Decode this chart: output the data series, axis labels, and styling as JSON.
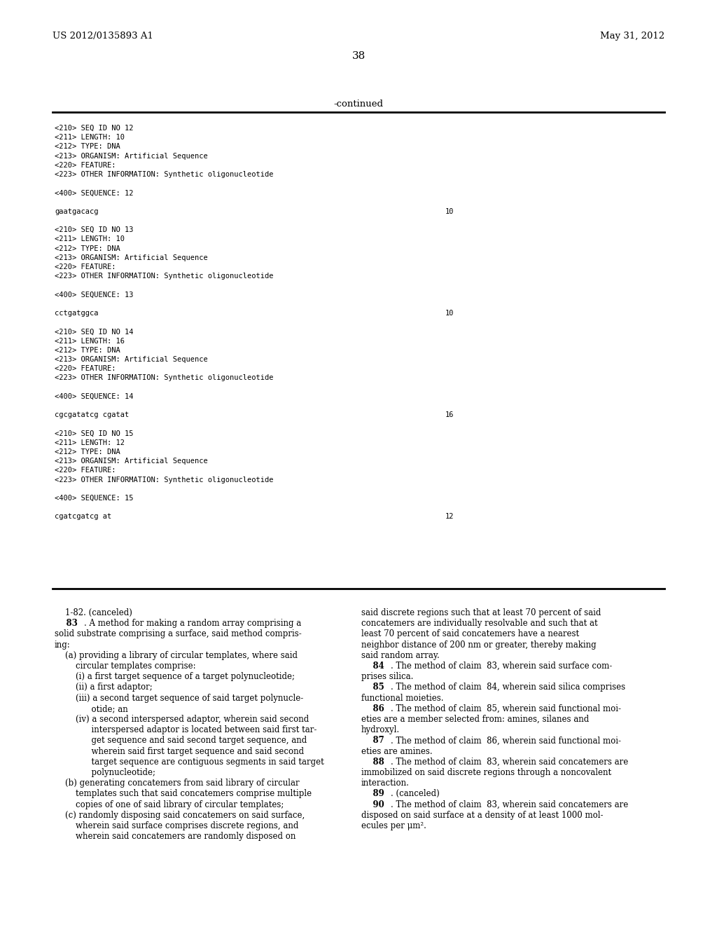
{
  "bg_color": "#ffffff",
  "header_left": "US 2012/0135893 A1",
  "header_right": "May 31, 2012",
  "page_number": "38",
  "continued_label": "-continued",
  "seq_section": [
    {
      "lines": [
        "<210> SEQ ID NO 12",
        "<211> LENGTH: 10",
        "<212> TYPE: DNA",
        "<213> ORGANISM: Artificial Sequence",
        "<220> FEATURE:",
        "<223> OTHER INFORMATION: Synthetic oligonucleotide"
      ],
      "seq_label": "<400> SEQUENCE: 12",
      "seq_data": "gaatgacacg",
      "seq_num": "10"
    },
    {
      "lines": [
        "<210> SEQ ID NO 13",
        "<211> LENGTH: 10",
        "<212> TYPE: DNA",
        "<213> ORGANISM: Artificial Sequence",
        "<220> FEATURE:",
        "<223> OTHER INFORMATION: Synthetic oligonucleotide"
      ],
      "seq_label": "<400> SEQUENCE: 13",
      "seq_data": "cctgatggca",
      "seq_num": "10"
    },
    {
      "lines": [
        "<210> SEQ ID NO 14",
        "<211> LENGTH: 16",
        "<212> TYPE: DNA",
        "<213> ORGANISM: Artificial Sequence",
        "<220> FEATURE:",
        "<223> OTHER INFORMATION: Synthetic oligonucleotide"
      ],
      "seq_label": "<400> SEQUENCE: 14",
      "seq_data": "cgcgatatcg cgatat",
      "seq_num": "16"
    },
    {
      "lines": [
        "<210> SEQ ID NO 15",
        "<211> LENGTH: 12",
        "<212> TYPE: DNA",
        "<213> ORGANISM: Artificial Sequence",
        "<220> FEATURE:",
        "<223> OTHER INFORMATION: Synthetic oligonucleotide"
      ],
      "seq_label": "<400> SEQUENCE: 15",
      "seq_data": "cgatcgatcg at",
      "seq_num": "12"
    }
  ],
  "claims_left": [
    [
      "normal",
      "    1-82. (canceled)"
    ],
    [
      "bold_start",
      "83",
      ". A method for making a random array comprising a"
    ],
    [
      "normal",
      "solid substrate comprising a surface, said method compris-"
    ],
    [
      "normal",
      "ing:"
    ],
    [
      "normal",
      "    (a) providing a library of circular templates, where said"
    ],
    [
      "normal",
      "        circular templates comprise:"
    ],
    [
      "normal",
      "        (i) a first target sequence of a target polynucleotide;"
    ],
    [
      "normal",
      "        (ii) a first adaptor;"
    ],
    [
      "normal",
      "        (iii) a second target sequence of said target polynucle-"
    ],
    [
      "normal",
      "              otide; an"
    ],
    [
      "normal",
      "        (iv) a second interspersed adaptor, wherein said second"
    ],
    [
      "normal",
      "              interspersed adaptor is located between said first tar-"
    ],
    [
      "normal",
      "              get sequence and said second target sequence, and"
    ],
    [
      "normal",
      "              wherein said first target sequence and said second"
    ],
    [
      "normal",
      "              target sequence are contiguous segments in said target"
    ],
    [
      "normal",
      "              polynucleotide;"
    ],
    [
      "normal",
      "    (b) generating concatemers from said library of circular"
    ],
    [
      "normal",
      "        templates such that said concatemers comprise multiple"
    ],
    [
      "normal",
      "        copies of one of said library of circular templates;"
    ],
    [
      "normal",
      "    (c) randomly disposing said concatemers on said surface,"
    ],
    [
      "normal",
      "        wherein said surface comprises discrete regions, and"
    ],
    [
      "normal",
      "        wherein said concatemers are randomly disposed on"
    ]
  ],
  "claims_right": [
    [
      "normal",
      "said discrete regions such that at least 70 percent of said"
    ],
    [
      "normal",
      "concatemers are individually resolvable and such that at"
    ],
    [
      "normal",
      "least 70 percent of said concatemers have a nearest"
    ],
    [
      "normal",
      "neighbor distance of 200 nm or greater, thereby making"
    ],
    [
      "normal",
      "said random array."
    ],
    [
      "bold_start",
      "84",
      ". The method of claim  83, wherein said surface com-"
    ],
    [
      "normal",
      "prises silica."
    ],
    [
      "bold_start",
      "85",
      ". The method of claim  84, wherein said silica comprises"
    ],
    [
      "normal",
      "functional moieties."
    ],
    [
      "bold_start",
      "86",
      ". The method of claim  85, wherein said functional moi-"
    ],
    [
      "normal",
      "eties are a member selected from: amines, silanes and"
    ],
    [
      "normal",
      "hydroxyl."
    ],
    [
      "bold_start",
      "87",
      ". The method of claim  86, wherein said functional moi-"
    ],
    [
      "normal",
      "eties are amines."
    ],
    [
      "bold_start",
      "88",
      ". The method of claim  83, wherein said concatemers are"
    ],
    [
      "normal",
      "immobilized on said discrete regions through a noncovalent"
    ],
    [
      "normal",
      "interaction."
    ],
    [
      "bold_start",
      "89",
      ". (canceled)"
    ],
    [
      "bold_start",
      "90",
      ". The method of claim  83, wherein said concatemers are"
    ],
    [
      "normal",
      "disposed on said surface at a density of at least 1000 mol-"
    ],
    [
      "normal",
      "ecules per μm²."
    ]
  ]
}
